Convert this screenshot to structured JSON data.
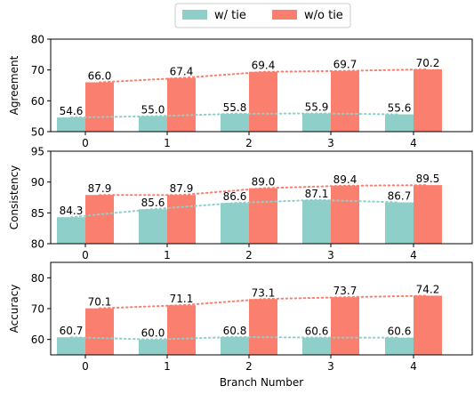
{
  "legend": {
    "items": [
      {
        "label": "w/ tie",
        "color": "#8ecfc9"
      },
      {
        "label": "w/o tie",
        "color": "#fa7f6f"
      }
    ],
    "placement": "top-center"
  },
  "xlabel": "Branch Number",
  "chart_data": [
    {
      "type": "bar",
      "ylabel": "Agreement",
      "categories": [
        "0",
        "1",
        "2",
        "3",
        "4"
      ],
      "ylim": [
        50,
        80
      ],
      "yticks": [
        50,
        60,
        70,
        80
      ],
      "grid": false,
      "trend_lines": "dotted",
      "series": [
        {
          "name": "w/ tie",
          "color": "#8ecfc9",
          "values": [
            54.6,
            55.0,
            55.8,
            55.9,
            55.6
          ],
          "labels": [
            "54.6",
            "55.0",
            "55.8",
            "55.9",
            "55.6"
          ]
        },
        {
          "name": "w/o tie",
          "color": "#fa7f6f",
          "values": [
            66.0,
            67.4,
            69.4,
            69.7,
            70.2
          ],
          "labels": [
            "66.0",
            "67.4",
            "69.4",
            "69.7",
            "70.2"
          ]
        }
      ]
    },
    {
      "type": "bar",
      "ylabel": "Consistency",
      "categories": [
        "0",
        "1",
        "2",
        "3",
        "4"
      ],
      "ylim": [
        80,
        95
      ],
      "yticks": [
        80,
        85,
        90,
        95
      ],
      "grid": false,
      "trend_lines": "dotted",
      "series": [
        {
          "name": "w/ tie",
          "color": "#8ecfc9",
          "values": [
            84.3,
            85.6,
            86.6,
            87.1,
            86.7
          ],
          "labels": [
            "84.3",
            "85.6",
            "86.6",
            "87.1",
            "86.7"
          ]
        },
        {
          "name": "w/o tie",
          "color": "#fa7f6f",
          "values": [
            87.9,
            87.9,
            89.0,
            89.4,
            89.5
          ],
          "labels": [
            "87.9",
            "87.9",
            "89.0",
            "89.4",
            "89.5"
          ]
        }
      ]
    },
    {
      "type": "bar",
      "ylabel": "Accuracy",
      "categories": [
        "0",
        "1",
        "2",
        "3",
        "4"
      ],
      "ylim": [
        55,
        85
      ],
      "yticks": [
        60,
        70,
        80
      ],
      "grid": false,
      "trend_lines": "dotted",
      "series": [
        {
          "name": "w/ tie",
          "color": "#8ecfc9",
          "values": [
            60.7,
            60.0,
            60.8,
            60.6,
            60.6
          ],
          "labels": [
            "60.7",
            "60.0",
            "60.8",
            "60.6",
            "60.6"
          ]
        },
        {
          "name": "w/o tie",
          "color": "#fa7f6f",
          "values": [
            70.1,
            71.1,
            73.1,
            73.7,
            74.2
          ],
          "labels": [
            "70.1",
            "71.1",
            "73.1",
            "73.7",
            "74.2"
          ]
        }
      ]
    }
  ]
}
